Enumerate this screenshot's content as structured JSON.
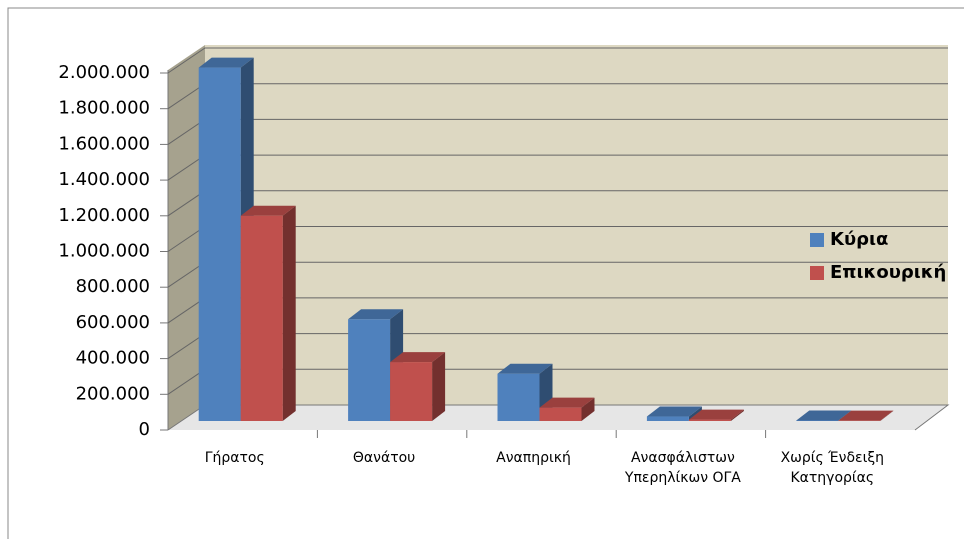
{
  "chart_data": {
    "type": "bar3d",
    "categories": [
      "Γήρατος",
      "Θανάτου",
      "Αναπηρική",
      "Ανασφάλιστων Υπερηλίκων ΟΓΑ",
      "Χωρίς Ένδειξη Κατηγορίας"
    ],
    "series": [
      {
        "name": "Κύρια",
        "color": "#4f81bd",
        "values": [
          1980000,
          570000,
          265000,
          25000,
          3000
        ]
      },
      {
        "name": "Επικουρική",
        "color": "#c0504d",
        "values": [
          1150000,
          330000,
          75000,
          8000,
          2000
        ]
      }
    ],
    "ylim": [
      0,
      2000000
    ],
    "yticks": [
      0,
      {
        "value": 200000,
        "label": "200.000"
      },
      {
        "value": 400000,
        "label": "400.000"
      },
      {
        "value": 600000,
        "label": "600.000"
      },
      {
        "value": 800000,
        "label": "800.000"
      },
      {
        "value": 1000000,
        "label": "1.000.000"
      },
      {
        "value": 1200000,
        "label": "1.200.000"
      },
      {
        "value": 1400000,
        "label": "1.400.000"
      },
      {
        "value": 1600000,
        "label": "1.600.000"
      },
      {
        "value": 1800000,
        "label": "1.800.000"
      },
      {
        "value": 2000000,
        "label": "2.000.000"
      }
    ],
    "grid": true,
    "legend": "right"
  }
}
